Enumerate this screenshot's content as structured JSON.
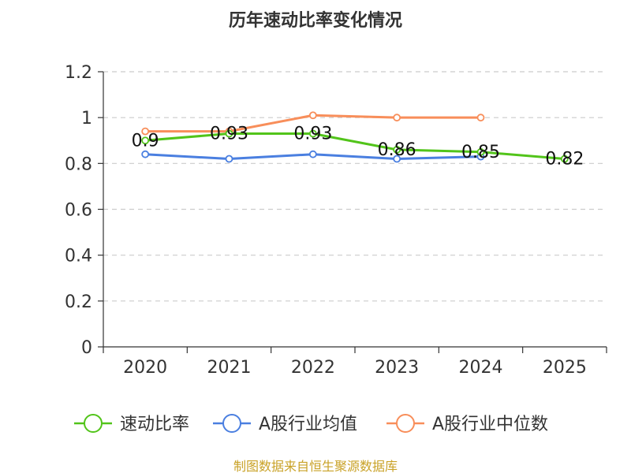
{
  "chart_data": {
    "type": "line",
    "title": "历年速动比率变化情况",
    "categories": [
      "2020",
      "2021",
      "2022",
      "2023",
      "2024",
      "2025"
    ],
    "ylim": [
      0,
      1.2
    ],
    "yticks": [
      0,
      0.2,
      0.4,
      0.6,
      0.8,
      1,
      1.2
    ],
    "ytick_labels": [
      "0",
      "0.2",
      "0.4",
      "0.6",
      "0.8",
      "1",
      "1.2"
    ],
    "grid": true,
    "legend_position": "bottom",
    "series": [
      {
        "name": "速动比率",
        "color": "#52c41a",
        "values": [
          0.9,
          0.93,
          0.93,
          0.86,
          0.85,
          0.82
        ],
        "labels": [
          "0.9",
          "0.93",
          "0.93",
          "0.86",
          "0.85",
          "0.82"
        ]
      },
      {
        "name": "A股行业均值",
        "color": "#4a7fe0",
        "values": [
          0.84,
          0.82,
          0.84,
          0.82,
          0.83,
          null
        ]
      },
      {
        "name": "A股行业中位数",
        "color": "#f88e5a",
        "values": [
          0.94,
          0.94,
          1.01,
          1.0,
          1.0,
          null
        ]
      }
    ]
  },
  "source": {
    "text": "制图数据来自恒生聚源数据库",
    "color": "#c9a227"
  }
}
